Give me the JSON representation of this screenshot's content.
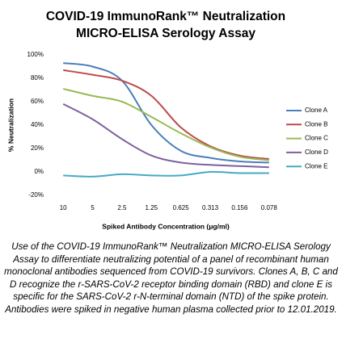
{
  "chart_data": {
    "type": "line",
    "title": [
      "COVID-19 ImmunoRank™ Neutralization",
      "MICRO-ELISA Serology Assay"
    ],
    "x_label": "Spiked Antibody Concentration (μg/ml)",
    "y_label": "% Neutralization",
    "categories": [
      "10",
      "5",
      "2.5",
      "1.25",
      "0.625",
      "0.313",
      "0.156",
      "0.078"
    ],
    "series": [
      {
        "name": "Clone A",
        "color": "#4a7ebb",
        "values": [
          93,
          90,
          78,
          40,
          18,
          12,
          9,
          8
        ]
      },
      {
        "name": "Clone B",
        "color": "#be4b48",
        "values": [
          87,
          83,
          78,
          65,
          38,
          22,
          14,
          11
        ]
      },
      {
        "name": "Clone C",
        "color": "#98b954",
        "values": [
          71,
          65,
          60,
          47,
          33,
          21,
          13,
          10
        ]
      },
      {
        "name": "Clone D",
        "color": "#7d60a0",
        "values": [
          58,
          45,
          28,
          14,
          8,
          6,
          5,
          4
        ]
      },
      {
        "name": "Clone E",
        "color": "#46aac5",
        "values": [
          -3,
          -4,
          -2,
          -3,
          -3,
          0,
          -1,
          -1
        ]
      }
    ],
    "ylim": [
      -20,
      100
    ],
    "yticks": [
      {
        "value": -20,
        "label": "-20%"
      },
      {
        "value": 0,
        "label": "0%"
      },
      {
        "value": 20,
        "label": "20%"
      },
      {
        "value": 40,
        "label": "40%"
      },
      {
        "value": 60,
        "label": "60%"
      },
      {
        "value": 80,
        "label": "80%"
      },
      {
        "value": 100,
        "label": "100%"
      }
    ],
    "grid": false,
    "legend": "right",
    "caption": "Use of the COVID-19 ImmunoRank™ Neutralization MICRO-ELISA Serology Assay to differentiate neutralizing potential of a panel of recombinant human monoclonal antibodies sequenced from COVID-19 survivors. Clones A, B, C and D recognize the r-SARS-CoV-2 receptor binding domain (RBD) and clone E is specific for the SARS-CoV-2 r-N-terminal domain (NTD) of the spike protein. Antibodies were spiked in negative human plasma collected prior to 12.01.2019."
  }
}
